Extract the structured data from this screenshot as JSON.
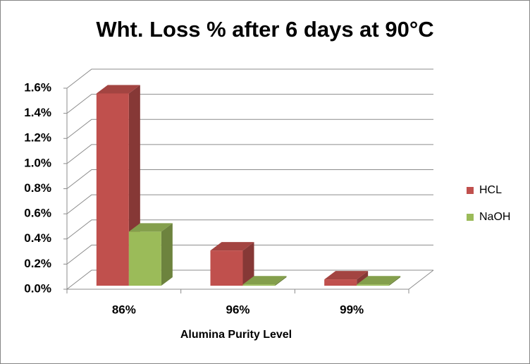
{
  "chart_data": {
    "type": "bar3d",
    "title": "Wht. Loss % after 6 days at 90°C",
    "x_label": "Alumina Purity Level",
    "categories": [
      "86%",
      "96%",
      "99%"
    ],
    "series": [
      {
        "name": "HCL",
        "color": "#c0504d",
        "values": [
          1.53,
          0.28,
          0.05
        ]
      },
      {
        "name": "NaOH",
        "color": "#9bbb59",
        "values": [
          0.43,
          0.01,
          0.01
        ]
      }
    ],
    "ylim": [
      0,
      1.6
    ],
    "yticks": [
      {
        "value": 0,
        "label": "0.0%"
      },
      {
        "value": 0.2,
        "label": "0.2%"
      },
      {
        "value": 0.4,
        "label": "0.4%"
      },
      {
        "value": 0.6,
        "label": "0.6%"
      },
      {
        "value": 0.8,
        "label": "0.8%"
      },
      {
        "value": 1.0,
        "label": "1.0%"
      },
      {
        "value": 1.2,
        "label": "1.2%"
      },
      {
        "value": 1.4,
        "label": "1.4%"
      },
      {
        "value": 1.6,
        "label": "1.6%"
      }
    ],
    "grid": true,
    "legend": "right"
  }
}
